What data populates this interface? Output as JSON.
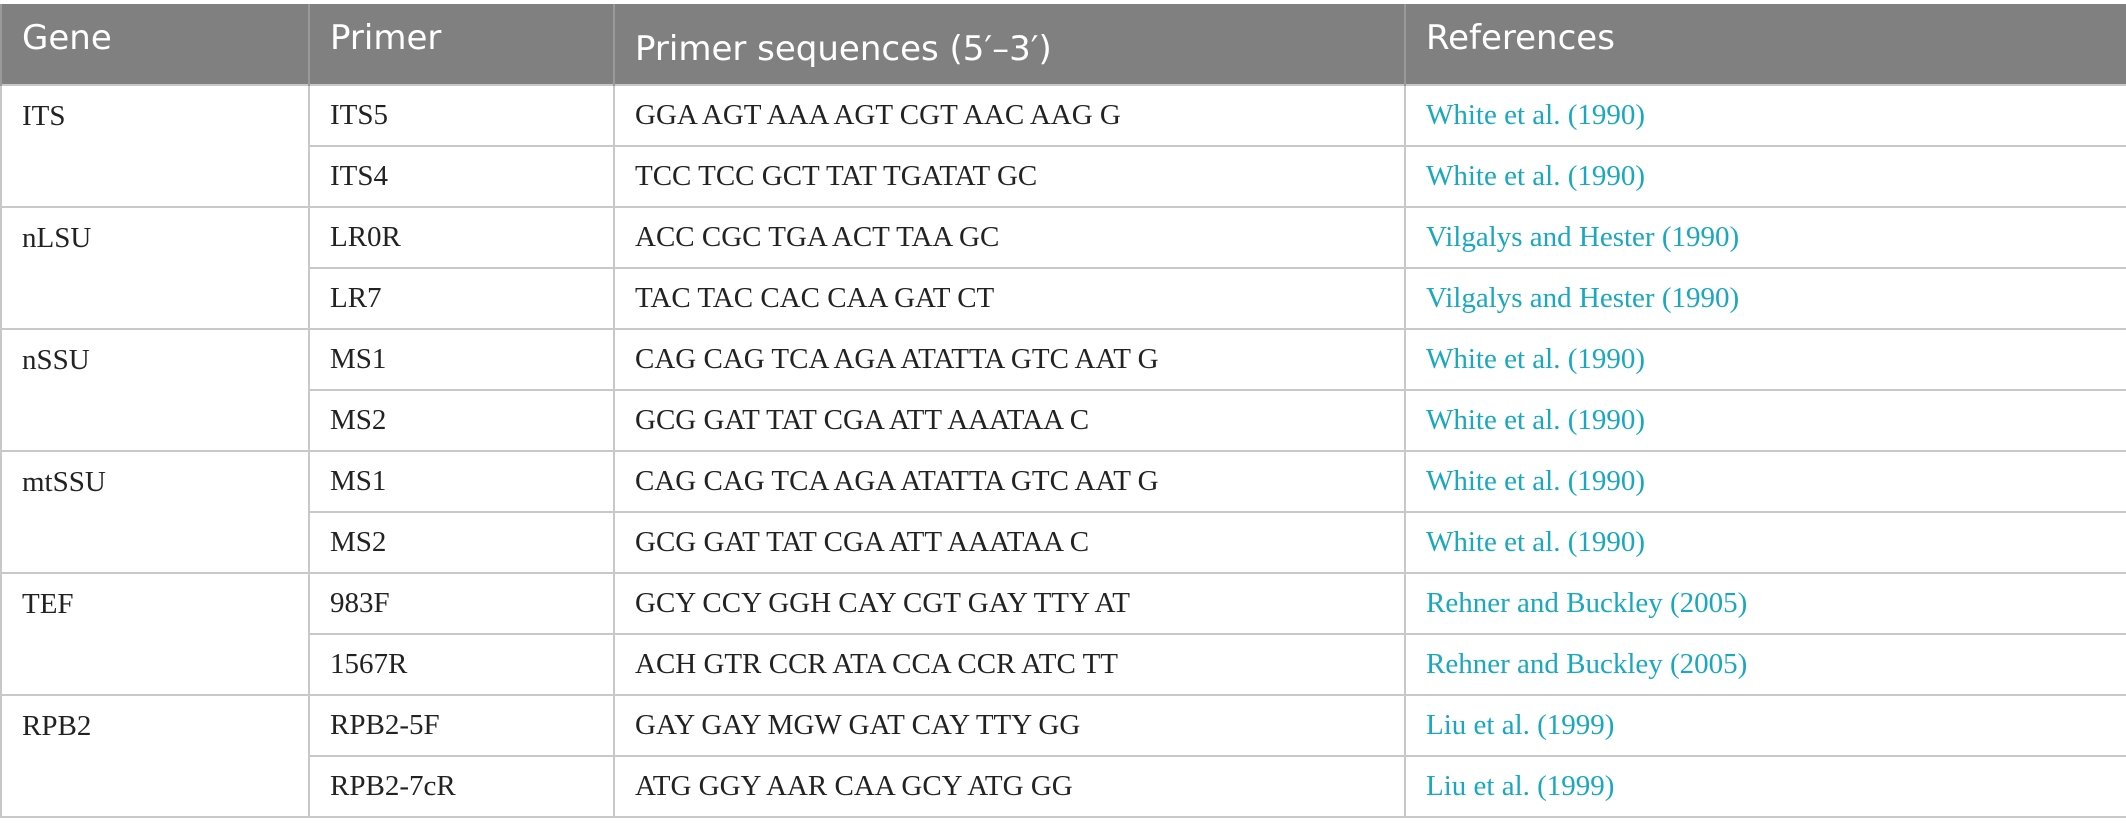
{
  "table": {
    "headers": {
      "gene": "Gene",
      "primer": "Primer",
      "sequence": "Primer sequences (5′–3′)",
      "references": "References"
    },
    "groups": [
      {
        "gene": "ITS",
        "rows": [
          {
            "primer": "ITS5",
            "sequence": "GGA AGT AAA AGT CGT AAC AAG G",
            "reference": "White et al. (1990)"
          },
          {
            "primer": "ITS4",
            "sequence": "TCC TCC GCT TAT TGATAT GC",
            "reference": "White et al. (1990)"
          }
        ]
      },
      {
        "gene": "nLSU",
        "rows": [
          {
            "primer": "LR0R",
            "sequence": "ACC CGC TGA ACT TAA GC",
            "reference": "Vilgalys and Hester (1990)"
          },
          {
            "primer": "LR7",
            "sequence": "TAC TAC CAC CAA GAT CT",
            "reference": "Vilgalys and Hester (1990)"
          }
        ]
      },
      {
        "gene": "nSSU",
        "rows": [
          {
            "primer": "MS1",
            "sequence": "CAG CAG TCA AGA ATATTA GTC AAT G",
            "reference": "White et al. (1990)"
          },
          {
            "primer": "MS2",
            "sequence": "GCG GAT TAT CGA ATT AAATAA C",
            "reference": "White et al. (1990)"
          }
        ]
      },
      {
        "gene": "mtSSU",
        "rows": [
          {
            "primer": "MS1",
            "sequence": "CAG CAG TCA AGA ATATTA GTC AAT G",
            "reference": "White et al. (1990)"
          },
          {
            "primer": "MS2",
            "sequence": "GCG GAT TAT CGA ATT AAATAA C",
            "reference": "White et al. (1990)"
          }
        ]
      },
      {
        "gene": "TEF",
        "rows": [
          {
            "primer": "983F",
            "sequence": "GCY CCY GGH CAY CGT GAY TTY AT",
            "reference": "Rehner and Buckley (2005)"
          },
          {
            "primer": "1567R",
            "sequence": "ACH GTR CCR ATA CCA CCR ATC TT",
            "reference": "Rehner and Buckley (2005)"
          }
        ]
      },
      {
        "gene": "RPB2",
        "rows": [
          {
            "primer": "RPB2-5F",
            "sequence": "GAY GAY MGW GAT CAY TTY GG",
            "reference": "Liu et al. (1999)"
          },
          {
            "primer": "RPB2-7cR",
            "sequence": "ATG GGY AAR CAA GCY ATG GG",
            "reference": "Liu et al. (1999)"
          }
        ]
      }
    ]
  },
  "colors": {
    "header_bg": "#808080",
    "header_text": "#ffffff",
    "body_text": "#222222",
    "reference_link": "#1aa8bf",
    "grid": "#c8c8c8"
  }
}
